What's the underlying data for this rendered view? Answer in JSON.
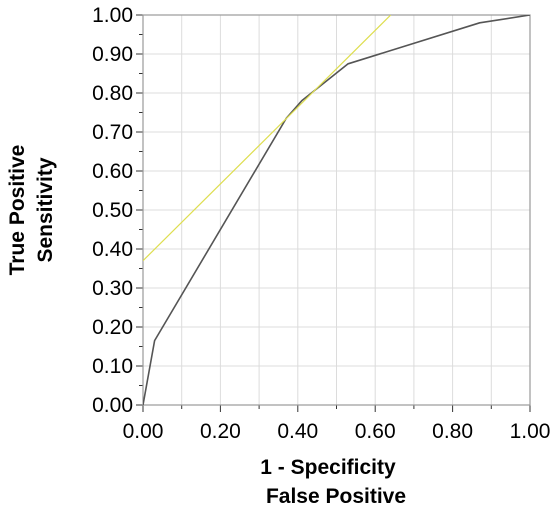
{
  "chart_data": {
    "type": "line",
    "xlabel": [
      "1 - Specificity",
      "False Positive"
    ],
    "ylabel": [
      "True Positive",
      "Sensitivity"
    ],
    "xlim": [
      0,
      1
    ],
    "ylim": [
      0,
      1
    ],
    "x_ticks": [
      "0.00",
      "0.20",
      "0.40",
      "0.60",
      "0.80",
      "1.00"
    ],
    "y_ticks": [
      "0.00",
      "0.10",
      "0.20",
      "0.30",
      "0.40",
      "0.50",
      "0.60",
      "0.70",
      "0.80",
      "0.90",
      "1.00"
    ],
    "grid": true,
    "series": [
      {
        "color": "#555555",
        "x": [
          0.0,
          0.03,
          0.37,
          0.41,
          0.53,
          0.87,
          1.0
        ],
        "y": [
          0.0,
          0.165,
          0.735,
          0.78,
          0.875,
          0.98,
          1.0
        ]
      },
      {
        "color": "#dede50",
        "x": [
          0.0,
          0.64
        ],
        "y": [
          0.37,
          1.0
        ]
      }
    ]
  }
}
